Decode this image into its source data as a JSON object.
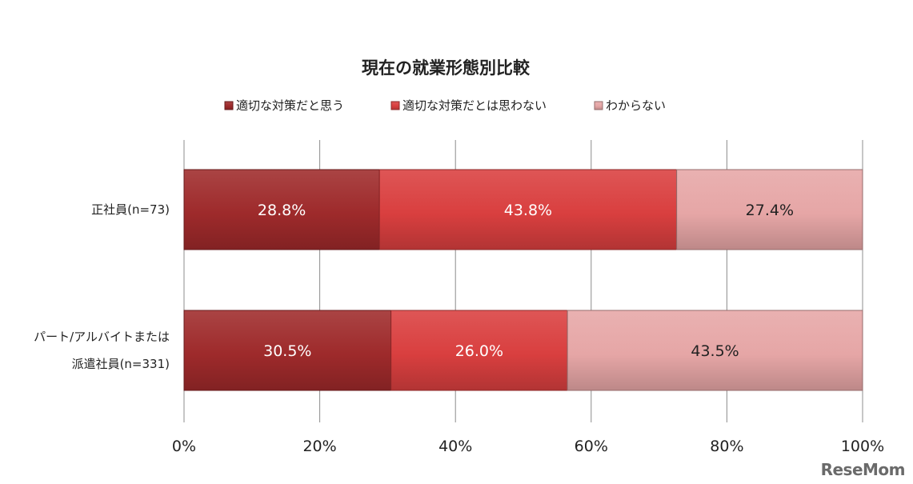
{
  "chart_data": {
    "type": "bar",
    "orientation": "horizontal",
    "stacked": true,
    "title": "現在の就業形態別比較",
    "categories": [
      [
        "正社員(n=73)"
      ],
      [
        "パート/アルバイトまたは",
        "派遣社員(n=331)"
      ]
    ],
    "series": [
      {
        "name": "適切な対策だと思う",
        "values": [
          28.8,
          30.5
        ],
        "labels": [
          "28.8%",
          "30.5%"
        ],
        "color": "#9e2a2b",
        "label_color": "#ffffff"
      },
      {
        "name": "適切な対策だとは思わない",
        "values": [
          43.8,
          26.0
        ],
        "labels": [
          "43.8%",
          "26.0%"
        ],
        "color": "#d93f3f",
        "label_color": "#ffffff"
      },
      {
        "name": "わからない",
        "values": [
          27.4,
          43.5
        ],
        "labels": [
          "27.4%",
          "43.5%"
        ],
        "color": "#e6a6a6",
        "label_color": "#222222"
      }
    ],
    "xlim": [
      0,
      100
    ],
    "xticks": [
      "0%",
      "20%",
      "40%",
      "60%",
      "80%",
      "100%"
    ],
    "grid": true,
    "legend_position": "top"
  },
  "watermark": "ReseMom"
}
